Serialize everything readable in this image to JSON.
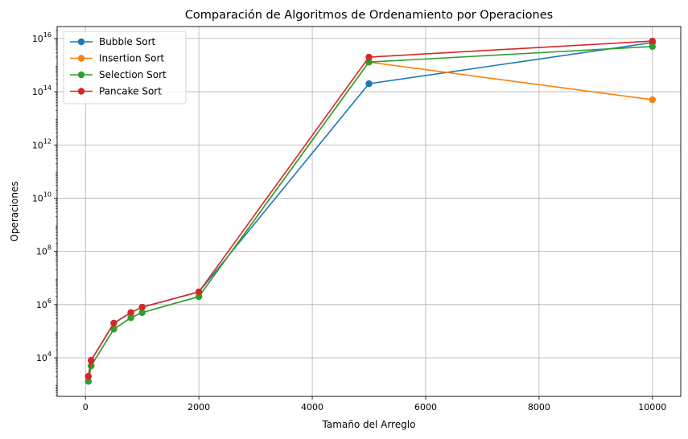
{
  "chart_data": {
    "type": "line",
    "title": "Comparación de Algoritmos de Ordenamiento por Operaciones",
    "xlabel": "Tamaño del Arreglo",
    "ylabel": "Operaciones",
    "yscale": "log",
    "xlim": [
      -500,
      10500
    ],
    "ylim_exponent": [
      2.55,
      16.45
    ],
    "xticks": [
      0,
      2000,
      4000,
      6000,
      8000,
      10000
    ],
    "yticks_exponent": [
      4,
      6,
      8,
      10,
      12,
      14,
      16
    ],
    "grid": true,
    "legend_position": "top-left",
    "series": [
      {
        "name": "Bubble Sort",
        "color": "#1f77b4",
        "x": [
          50,
          100,
          500,
          800,
          1000,
          2000,
          5000,
          10000
        ],
        "y": [
          2000,
          8000,
          200000,
          500000,
          800000,
          3000000,
          200000000000000,
          7000000000000000
        ]
      },
      {
        "name": "Insertion Sort",
        "color": "#ff7f0e",
        "x": [
          50,
          100,
          500,
          800,
          1000,
          2000,
          5000,
          10000
        ],
        "y": [
          1300,
          5000,
          120000,
          320000,
          500000,
          2000000,
          1300000000000000,
          50000000000000
        ]
      },
      {
        "name": "Selection Sort",
        "color": "#2ca02c",
        "x": [
          50,
          100,
          500,
          800,
          1000,
          2000,
          5000,
          10000
        ],
        "y": [
          1300,
          5000,
          120000,
          320000,
          500000,
          2000000,
          1300000000000000,
          5000000000000000
        ]
      },
      {
        "name": "Pancake Sort",
        "color": "#d62728",
        "x": [
          50,
          100,
          500,
          800,
          1000,
          2000,
          5000,
          10000
        ],
        "y": [
          2000,
          8000,
          200000,
          500000,
          800000,
          3000000,
          2000000000000000,
          8000000000000000
        ]
      }
    ]
  }
}
